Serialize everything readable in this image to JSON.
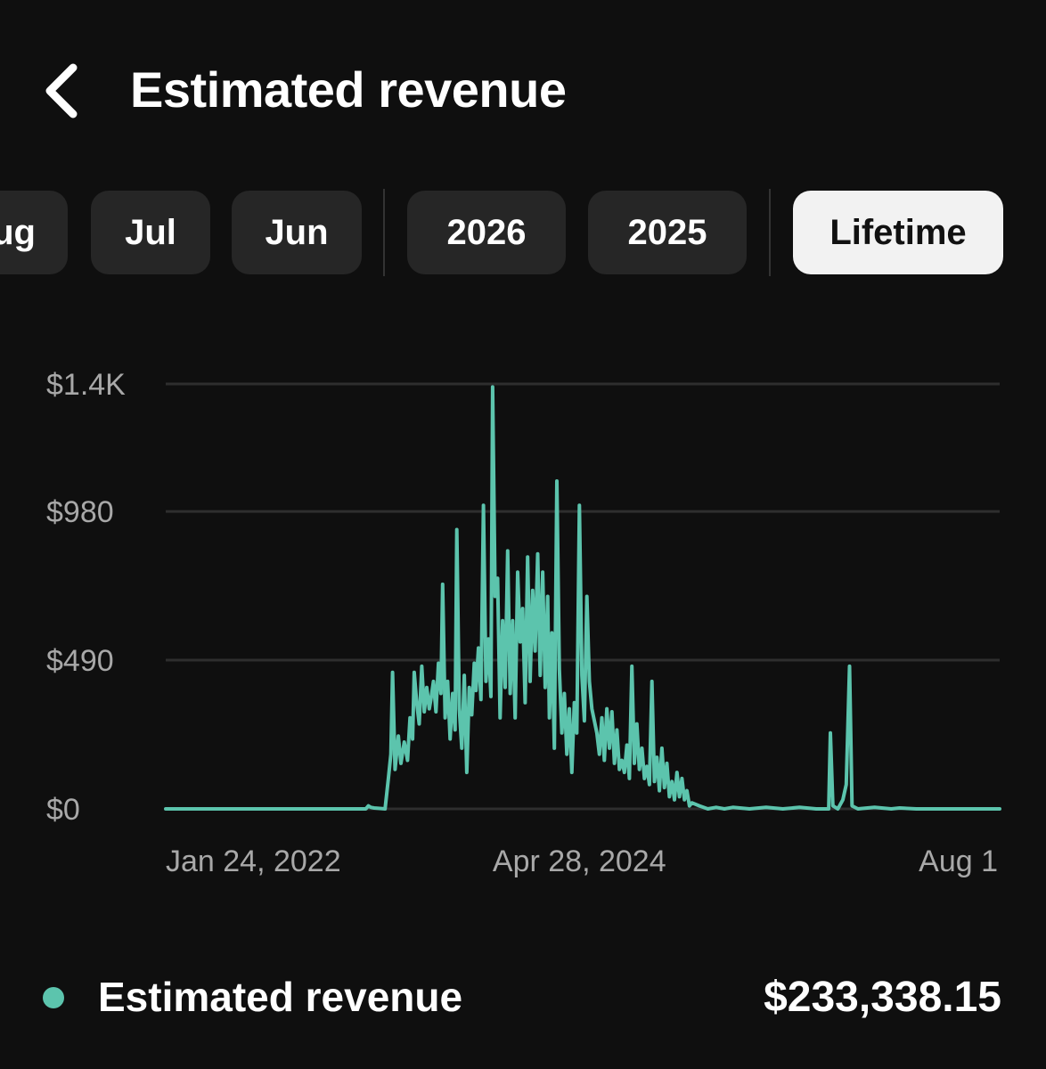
{
  "header": {
    "title": "Estimated revenue"
  },
  "tabs": [
    {
      "label": "Aug",
      "active": false
    },
    {
      "label": "Jul",
      "active": false
    },
    {
      "label": "Jun",
      "active": false
    },
    {
      "label": "2026",
      "active": false
    },
    {
      "label": "2025",
      "active": false
    },
    {
      "label": "Lifetime",
      "active": true
    }
  ],
  "colors": {
    "background": "#0f0f0f",
    "accent": "#5cc4ad",
    "tab_bg": "#262626",
    "tab_active_bg": "#f2f2f2",
    "gridline": "#2e2e2e",
    "axis_text": "#a8a8a8"
  },
  "icons": {
    "back": "chevron-left-icon"
  },
  "chart_data": {
    "type": "line",
    "title": "",
    "xlabel": "",
    "ylabel": "",
    "ylim": [
      0,
      1400
    ],
    "yticks": [
      {
        "value": 0,
        "label": "$0"
      },
      {
        "value": 490,
        "label": "$490"
      },
      {
        "value": 980,
        "label": "$980"
      },
      {
        "value": 1400,
        "label": "$1.4K"
      }
    ],
    "xticks": [
      "Jan 24, 2022",
      "Apr 28, 2024",
      "Aug 1"
    ],
    "x_tick_positions": [
      0.0,
      0.392,
      1.0
    ],
    "grid": true,
    "series": [
      {
        "name": "Estimated revenue",
        "color": "#5cc4ad",
        "points": [
          [
            0.0,
            0
          ],
          [
            0.24,
            0
          ],
          [
            0.243,
            10
          ],
          [
            0.246,
            5
          ],
          [
            0.25,
            3
          ],
          [
            0.263,
            0
          ],
          [
            0.267,
            100
          ],
          [
            0.27,
            180
          ],
          [
            0.272,
            450
          ],
          [
            0.275,
            130
          ],
          [
            0.279,
            240
          ],
          [
            0.282,
            150
          ],
          [
            0.286,
            220
          ],
          [
            0.29,
            160
          ],
          [
            0.293,
            300
          ],
          [
            0.296,
            230
          ],
          [
            0.298,
            450
          ],
          [
            0.301,
            350
          ],
          [
            0.304,
            280
          ],
          [
            0.307,
            470
          ],
          [
            0.31,
            320
          ],
          [
            0.313,
            400
          ],
          [
            0.316,
            330
          ],
          [
            0.318,
            360
          ],
          [
            0.321,
            420
          ],
          [
            0.324,
            320
          ],
          [
            0.327,
            480
          ],
          [
            0.33,
            380
          ],
          [
            0.332,
            740
          ],
          [
            0.335,
            300
          ],
          [
            0.338,
            420
          ],
          [
            0.341,
            230
          ],
          [
            0.344,
            380
          ],
          [
            0.347,
            260
          ],
          [
            0.349,
            920
          ],
          [
            0.352,
            330
          ],
          [
            0.355,
            200
          ],
          [
            0.358,
            440
          ],
          [
            0.361,
            120
          ],
          [
            0.364,
            400
          ],
          [
            0.367,
            310
          ],
          [
            0.37,
            480
          ],
          [
            0.372,
            390
          ],
          [
            0.375,
            530
          ],
          [
            0.378,
            360
          ],
          [
            0.381,
            1000
          ],
          [
            0.384,
            420
          ],
          [
            0.387,
            560
          ],
          [
            0.39,
            370
          ],
          [
            0.392,
            1390
          ],
          [
            0.395,
            700
          ],
          [
            0.398,
            760
          ],
          [
            0.401,
            300
          ],
          [
            0.404,
            620
          ],
          [
            0.407,
            400
          ],
          [
            0.41,
            850
          ],
          [
            0.413,
            380
          ],
          [
            0.416,
            620
          ],
          [
            0.419,
            300
          ],
          [
            0.422,
            780
          ],
          [
            0.425,
            550
          ],
          [
            0.428,
            660
          ],
          [
            0.431,
            350
          ],
          [
            0.434,
            830
          ],
          [
            0.437,
            420
          ],
          [
            0.44,
            720
          ],
          [
            0.443,
            520
          ],
          [
            0.446,
            840
          ],
          [
            0.449,
            440
          ],
          [
            0.452,
            780
          ],
          [
            0.455,
            400
          ],
          [
            0.458,
            700
          ],
          [
            0.46,
            300
          ],
          [
            0.463,
            580
          ],
          [
            0.466,
            200
          ],
          [
            0.469,
            1080
          ],
          [
            0.472,
            460
          ],
          [
            0.475,
            250
          ],
          [
            0.478,
            380
          ],
          [
            0.481,
            180
          ],
          [
            0.484,
            330
          ],
          [
            0.487,
            120
          ],
          [
            0.49,
            350
          ],
          [
            0.493,
            250
          ],
          [
            0.496,
            1000
          ],
          [
            0.499,
            440
          ],
          [
            0.502,
            290
          ],
          [
            0.505,
            700
          ],
          [
            0.508,
            420
          ],
          [
            0.511,
            330
          ],
          [
            0.514,
            290
          ],
          [
            0.517,
            250
          ],
          [
            0.52,
            180
          ],
          [
            0.523,
            300
          ],
          [
            0.526,
            160
          ],
          [
            0.529,
            330
          ],
          [
            0.532,
            200
          ],
          [
            0.535,
            320
          ],
          [
            0.538,
            150
          ],
          [
            0.541,
            260
          ],
          [
            0.544,
            130
          ],
          [
            0.547,
            160
          ],
          [
            0.55,
            120
          ],
          [
            0.553,
            210
          ],
          [
            0.556,
            100
          ],
          [
            0.559,
            470
          ],
          [
            0.562,
            150
          ],
          [
            0.565,
            280
          ],
          [
            0.568,
            130
          ],
          [
            0.571,
            200
          ],
          [
            0.574,
            100
          ],
          [
            0.577,
            140
          ],
          [
            0.58,
            80
          ],
          [
            0.583,
            420
          ],
          [
            0.586,
            90
          ],
          [
            0.589,
            170
          ],
          [
            0.592,
            60
          ],
          [
            0.595,
            200
          ],
          [
            0.598,
            70
          ],
          [
            0.601,
            150
          ],
          [
            0.604,
            40
          ],
          [
            0.607,
            90
          ],
          [
            0.61,
            30
          ],
          [
            0.613,
            120
          ],
          [
            0.616,
            40
          ],
          [
            0.619,
            100
          ],
          [
            0.622,
            30
          ],
          [
            0.625,
            60
          ],
          [
            0.628,
            10
          ],
          [
            0.631,
            20
          ],
          [
            0.64,
            10
          ],
          [
            0.65,
            0
          ],
          [
            0.66,
            5
          ],
          [
            0.67,
            0
          ],
          [
            0.68,
            5
          ],
          [
            0.7,
            0
          ],
          [
            0.72,
            5
          ],
          [
            0.74,
            0
          ],
          [
            0.76,
            5
          ],
          [
            0.78,
            0
          ],
          [
            0.795,
            0
          ],
          [
            0.797,
            250
          ],
          [
            0.8,
            10
          ],
          [
            0.806,
            0
          ],
          [
            0.812,
            30
          ],
          [
            0.816,
            80
          ],
          [
            0.82,
            470
          ],
          [
            0.823,
            10
          ],
          [
            0.83,
            0
          ],
          [
            0.85,
            5
          ],
          [
            0.87,
            0
          ],
          [
            0.88,
            3
          ],
          [
            0.9,
            0
          ],
          [
            1.0,
            0
          ]
        ]
      }
    ]
  },
  "legend": {
    "label": "Estimated revenue",
    "value": "$233,338.15",
    "dot_color": "#5cc4ad"
  }
}
